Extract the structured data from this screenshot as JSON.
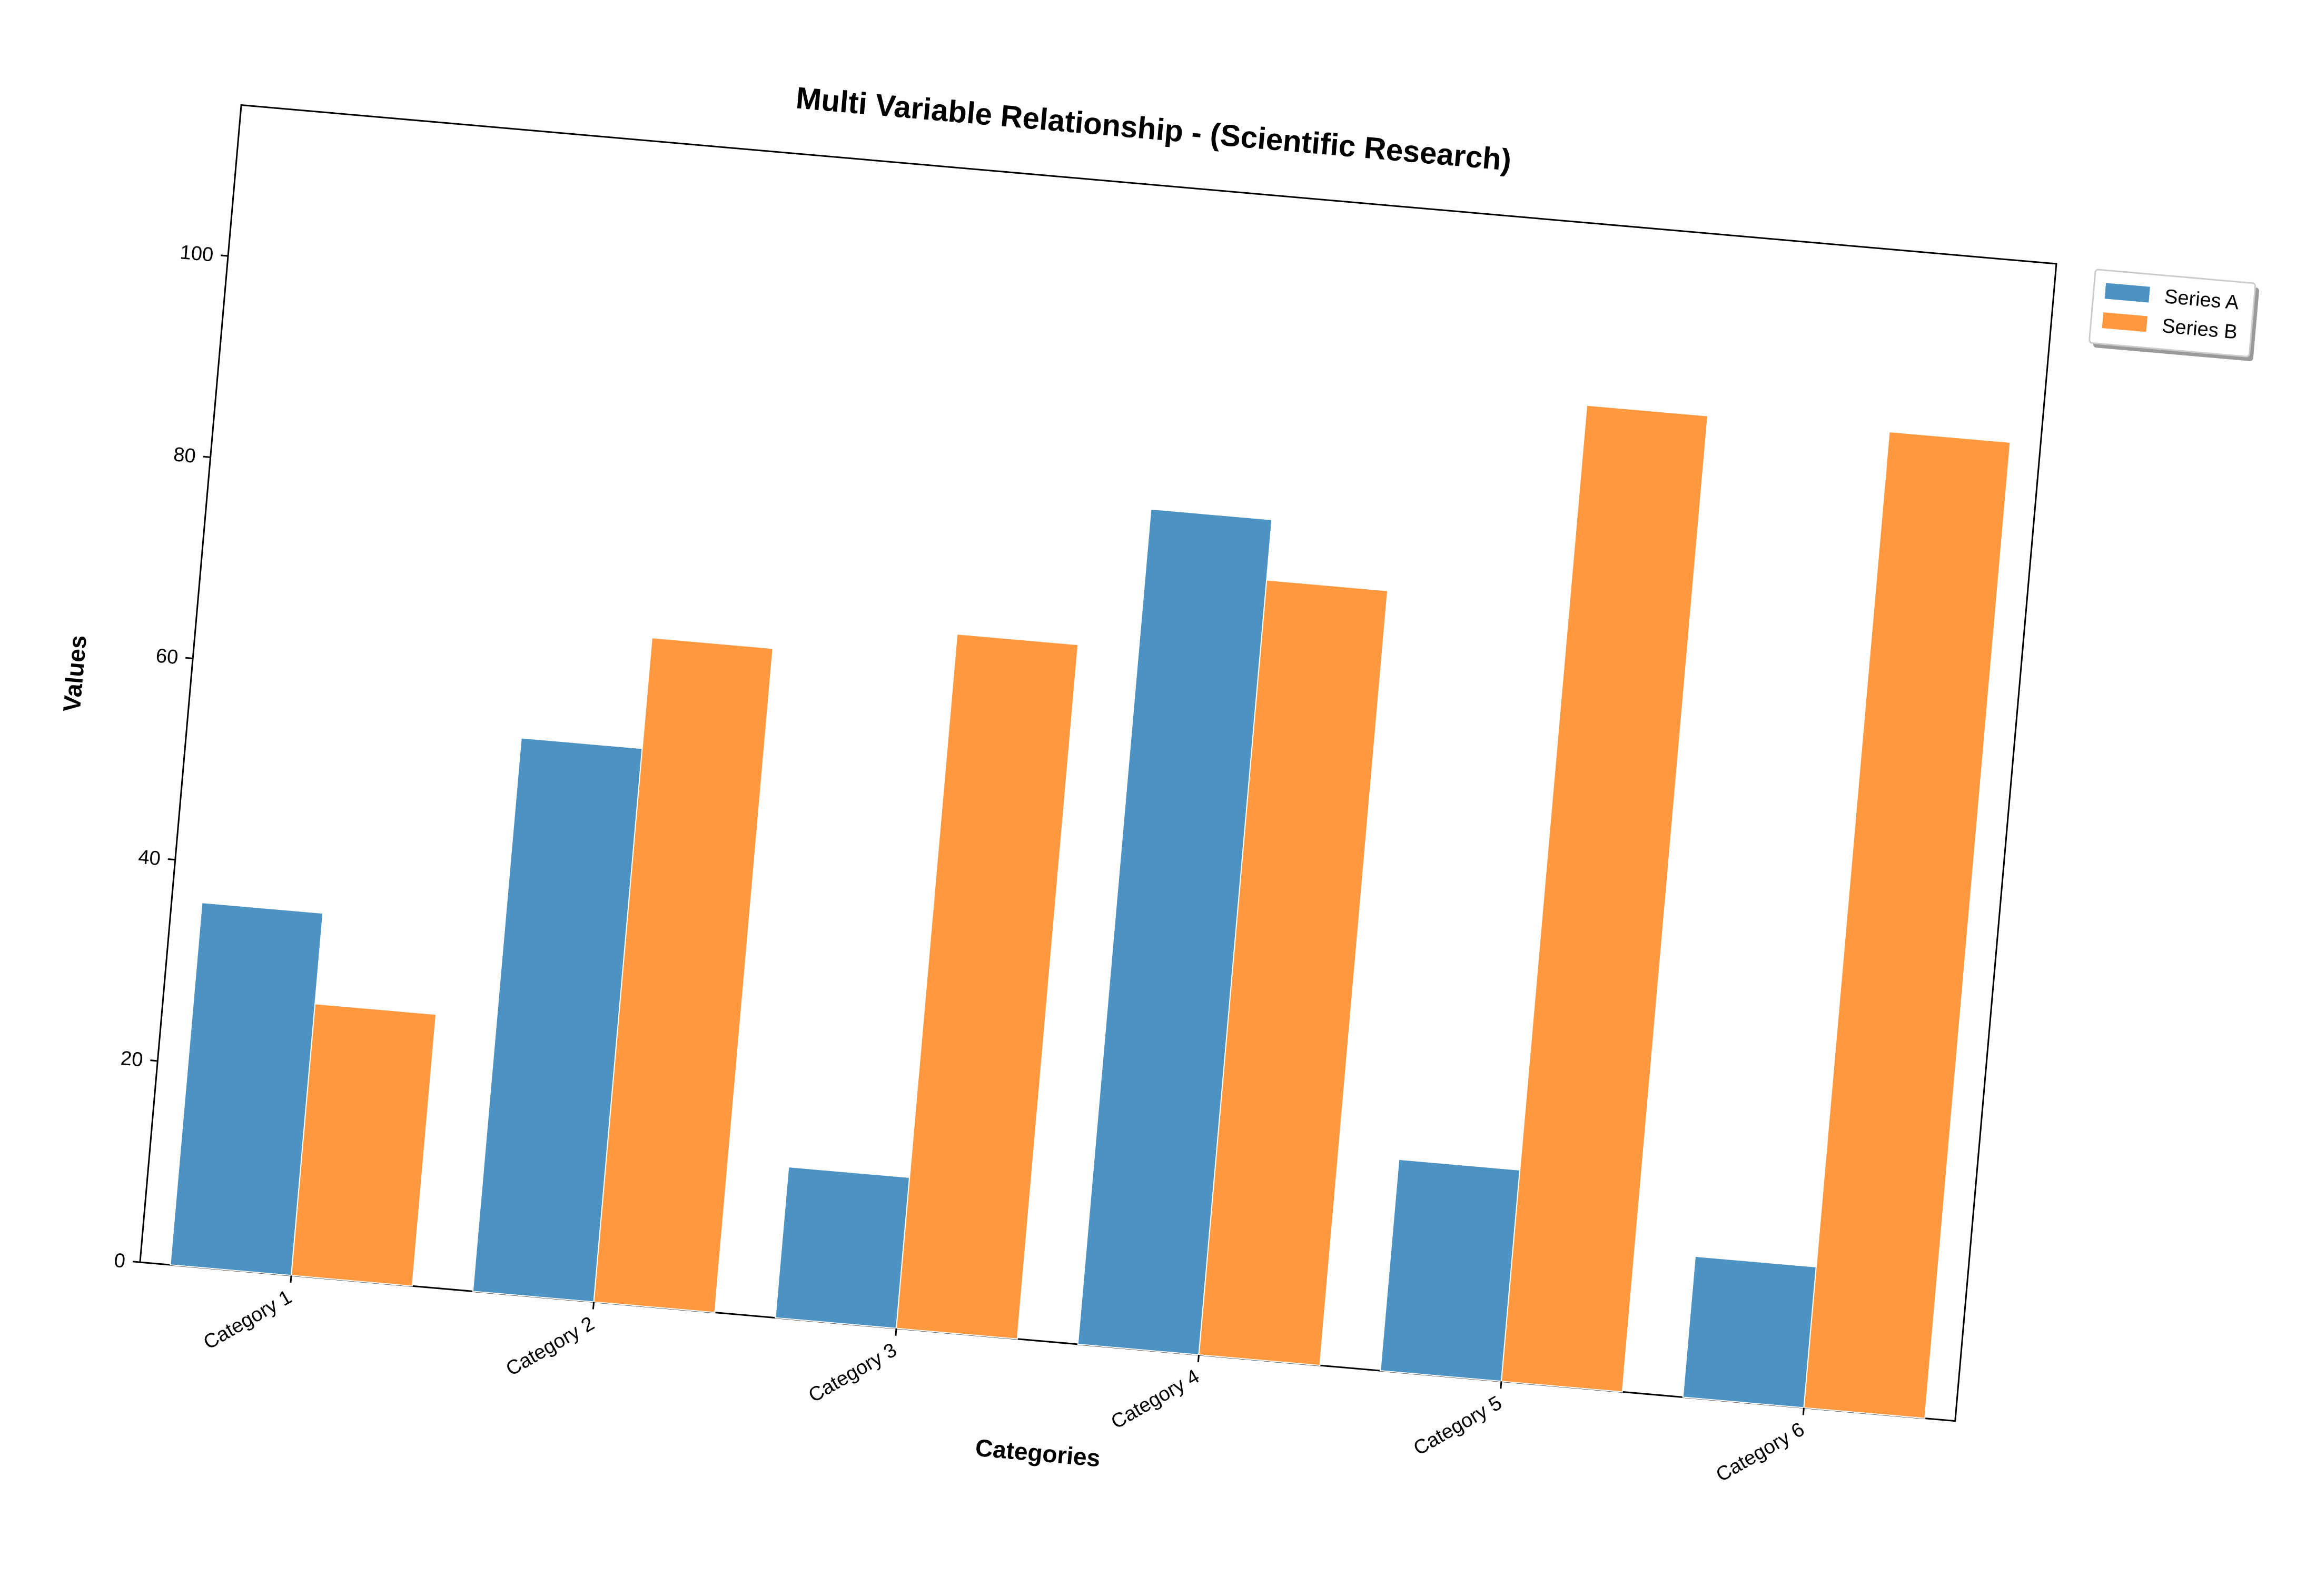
{
  "chart_data": {
    "type": "bar",
    "title": "Multi Variable Relationship - (Scientific Research)",
    "xlabel": "Categories",
    "ylabel": "Values",
    "categories": [
      "Category 1",
      "Category 2",
      "Category 3",
      "Category 4",
      "Category 5",
      "Category 6"
    ],
    "series": [
      {
        "name": "Series A",
        "color": "#4c92c3",
        "values": [
          36,
          55,
          15,
          83,
          21,
          14
        ]
      },
      {
        "name": "Series B",
        "color": "#ff983e",
        "values": [
          27,
          66,
          69,
          77,
          97,
          97
        ]
      }
    ],
    "ylim": [
      0,
      115
    ],
    "yticks": [
      0,
      20,
      40,
      60,
      80,
      100
    ],
    "grid": false,
    "legend_position": "top-right, outside plot area"
  }
}
